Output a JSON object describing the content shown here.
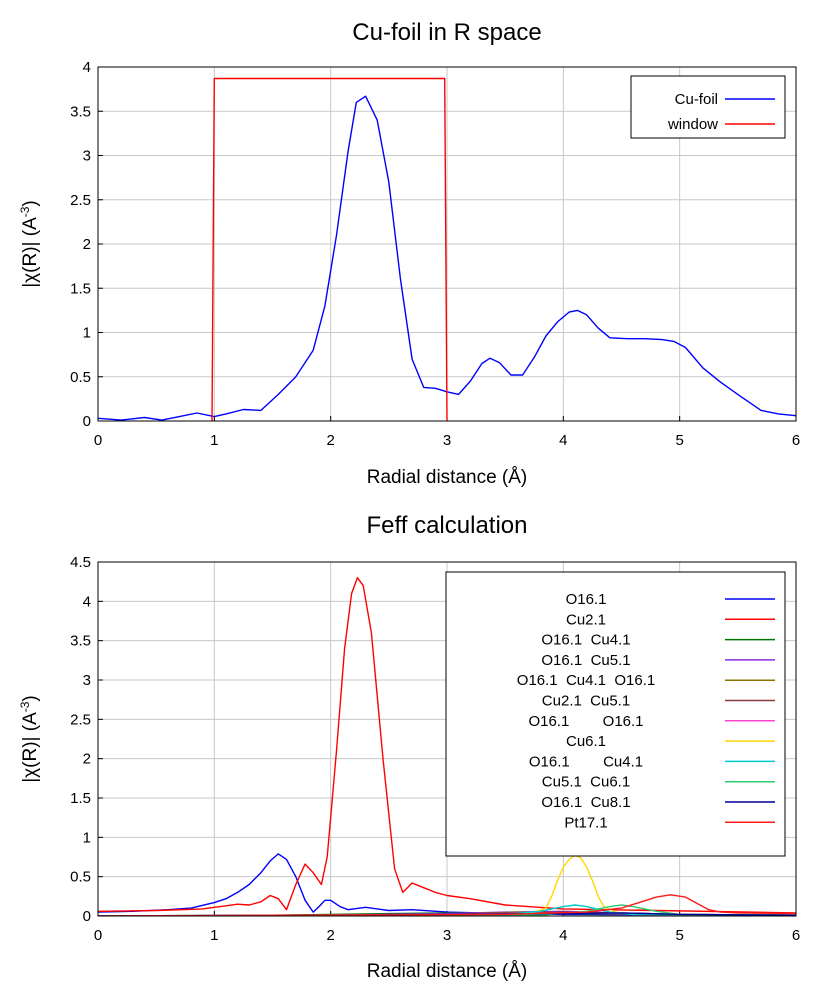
{
  "chart_data": [
    {
      "type": "line",
      "title": "Cu-foil in R space",
      "xlabel": "Radial distance    (Å)",
      "ylabel": "|χ(R)|    (A",
      "ylabel_sup": "-3",
      "ylabel_close": ")",
      "xlim": [
        0,
        6
      ],
      "ylim": [
        0,
        4
      ],
      "xticks": [
        0,
        1,
        2,
        3,
        4,
        5,
        6
      ],
      "yticks": [
        0,
        0.5,
        1,
        1.5,
        2,
        2.5,
        3,
        3.5,
        4
      ],
      "xtick_labels": [
        "0",
        "1",
        "2",
        "3",
        "4",
        "5",
        "6"
      ],
      "ytick_labels": [
        "0",
        "0.5",
        "1",
        "1.5",
        "2",
        "2.5",
        "3",
        "3.5",
        "4"
      ],
      "grid": true,
      "legend_position": "top-right",
      "series": [
        {
          "name": "Cu-foil",
          "color": "#0000ff",
          "x": [
            0,
            0.2,
            0.4,
            0.55,
            0.7,
            0.85,
            1.0,
            1.1,
            1.25,
            1.4,
            1.55,
            1.7,
            1.85,
            1.95,
            2.05,
            2.15,
            2.22,
            2.3,
            2.4,
            2.5,
            2.6,
            2.7,
            2.8,
            2.9,
            3.0,
            3.1,
            3.2,
            3.3,
            3.37,
            3.45,
            3.55,
            3.65,
            3.75,
            3.85,
            3.95,
            4.05,
            4.12,
            4.2,
            4.3,
            4.4,
            4.55,
            4.7,
            4.85,
            4.95,
            5.05,
            5.2,
            5.35,
            5.5,
            5.7,
            5.85,
            6.0
          ],
          "y": [
            0.03,
            0.01,
            0.04,
            0.01,
            0.05,
            0.09,
            0.05,
            0.08,
            0.13,
            0.12,
            0.3,
            0.5,
            0.8,
            1.3,
            2.1,
            3.05,
            3.6,
            3.67,
            3.4,
            2.7,
            1.6,
            0.7,
            0.38,
            0.37,
            0.33,
            0.3,
            0.45,
            0.65,
            0.71,
            0.66,
            0.52,
            0.52,
            0.72,
            0.96,
            1.12,
            1.23,
            1.25,
            1.2,
            1.05,
            0.94,
            0.93,
            0.93,
            0.92,
            0.9,
            0.83,
            0.6,
            0.44,
            0.3,
            0.12,
            0.08,
            0.06
          ]
        },
        {
          "name": "window",
          "color": "#ff0000",
          "x": [
            0.98,
            1.0,
            2.98,
            3.0
          ],
          "y": [
            0,
            3.87,
            3.87,
            0
          ]
        }
      ]
    },
    {
      "type": "line",
      "title": "Feff calculation",
      "xlabel": "Radial distance    (Å)",
      "ylabel": "|χ(R)|    (A",
      "ylabel_sup": "-3",
      "ylabel_close": ")",
      "xlim": [
        0,
        6
      ],
      "ylim": [
        0,
        4.5
      ],
      "xticks": [
        0,
        1,
        2,
        3,
        4,
        5,
        6
      ],
      "yticks": [
        0,
        0.5,
        1,
        1.5,
        2,
        2.5,
        3,
        3.5,
        4,
        4.5
      ],
      "xtick_labels": [
        "0",
        "1",
        "2",
        "3",
        "4",
        "5",
        "6"
      ],
      "ytick_labels": [
        "0",
        "0.5",
        "1",
        "1.5",
        "2",
        "2.5",
        "3",
        "3.5",
        "4",
        "4.5"
      ],
      "grid": true,
      "legend_position": "top-right",
      "series": [
        {
          "name": "O16.1",
          "color": "#0000ff",
          "x": [
            0,
            0.3,
            0.6,
            0.8,
            1.0,
            1.1,
            1.2,
            1.3,
            1.4,
            1.48,
            1.55,
            1.62,
            1.7,
            1.78,
            1.85,
            1.9,
            1.95,
            2.0,
            2.08,
            2.15,
            2.3,
            2.5,
            2.7,
            3.0,
            3.5,
            4.0,
            6.0
          ],
          "y": [
            0.05,
            0.06,
            0.08,
            0.1,
            0.17,
            0.22,
            0.3,
            0.4,
            0.55,
            0.7,
            0.79,
            0.72,
            0.5,
            0.2,
            0.05,
            0.12,
            0.2,
            0.2,
            0.12,
            0.08,
            0.11,
            0.07,
            0.08,
            0.05,
            0.03,
            0.02,
            0.01
          ]
        },
        {
          "name": "Cu2.1",
          "color": "#ff0000",
          "x": [
            0,
            0.5,
            0.9,
            1.0,
            1.1,
            1.2,
            1.3,
            1.4,
            1.48,
            1.55,
            1.62,
            1.7,
            1.78,
            1.85,
            1.92,
            1.97,
            2.05,
            2.12,
            2.18,
            2.23,
            2.28,
            2.35,
            2.45,
            2.55,
            2.62,
            2.7,
            2.8,
            2.9,
            3.0,
            3.2,
            3.5,
            4.0,
            6.0
          ],
          "y": [
            0.06,
            0.07,
            0.09,
            0.11,
            0.13,
            0.15,
            0.14,
            0.18,
            0.26,
            0.22,
            0.08,
            0.4,
            0.66,
            0.55,
            0.4,
            0.75,
            2.1,
            3.4,
            4.1,
            4.3,
            4.2,
            3.6,
            2.0,
            0.6,
            0.3,
            0.42,
            0.36,
            0.3,
            0.26,
            0.22,
            0.14,
            0.09,
            0.04
          ]
        },
        {
          "name": "O16.1  Cu4.1",
          "color": "#007700",
          "x": [
            0,
            1.5,
            2.5,
            3.0,
            4.0,
            5.0,
            6.0
          ],
          "y": [
            0.0,
            0.01,
            0.03,
            0.04,
            0.03,
            0.02,
            0.01
          ]
        },
        {
          "name": "O16.1  Cu5.1",
          "color": "#8a2be2",
          "x": [
            0,
            2.0,
            3.0,
            3.5,
            4.0,
            4.5,
            5.0,
            6.0
          ],
          "y": [
            0.0,
            0.01,
            0.03,
            0.05,
            0.06,
            0.04,
            0.02,
            0.01
          ]
        },
        {
          "name": "O16.1  Cu4.1  O16.1",
          "color": "#8b7500",
          "x": [
            0,
            2.0,
            3.0,
            3.6,
            4.0,
            4.4,
            5.0,
            6.0
          ],
          "y": [
            0.0,
            0.01,
            0.02,
            0.05,
            0.04,
            0.03,
            0.02,
            0.01
          ]
        },
        {
          "name": "Cu2.1  Cu5.1",
          "color": "#8b3a3a",
          "x": [
            0,
            2.0,
            3.0,
            3.5,
            4.0,
            4.5,
            5.0,
            6.0
          ],
          "y": [
            0.0,
            0.01,
            0.02,
            0.04,
            0.05,
            0.04,
            0.02,
            0.01
          ]
        },
        {
          "name": "O16.1        O16.1",
          "color": "#ff44cc",
          "x": [
            0,
            2.0,
            3.0,
            3.5,
            4.0,
            4.5,
            5.0,
            6.0
          ],
          "y": [
            0.0,
            0.01,
            0.02,
            0.03,
            0.04,
            0.03,
            0.02,
            0.01
          ]
        },
        {
          "name": "Cu6.1",
          "color": "#ffd700",
          "x": [
            0,
            3.5,
            3.75,
            3.85,
            3.9,
            3.95,
            4.0,
            4.05,
            4.1,
            4.15,
            4.2,
            4.25,
            4.3,
            4.35,
            4.45,
            4.6,
            6.0
          ],
          "y": [
            0.0,
            0.01,
            0.05,
            0.1,
            0.25,
            0.45,
            0.62,
            0.72,
            0.77,
            0.74,
            0.62,
            0.45,
            0.25,
            0.12,
            0.05,
            0.02,
            0.01
          ]
        },
        {
          "name": "O16.1        Cu4.1",
          "color": "#00cccc",
          "x": [
            0,
            3.5,
            3.8,
            4.0,
            4.1,
            4.2,
            4.4,
            4.6,
            6.0
          ],
          "y": [
            0.0,
            0.02,
            0.06,
            0.12,
            0.14,
            0.12,
            0.05,
            0.02,
            0.01
          ]
        },
        {
          "name": "Cu5.1  Cu6.1",
          "color": "#2ecc71",
          "x": [
            0,
            3.8,
            4.2,
            4.4,
            4.5,
            4.6,
            4.8,
            5.0,
            6.0
          ],
          "y": [
            0.0,
            0.01,
            0.06,
            0.12,
            0.14,
            0.12,
            0.06,
            0.02,
            0.01
          ]
        },
        {
          "name": "O16.1  Cu8.1",
          "color": "#000099",
          "x": [
            0,
            2.0,
            3.0,
            4.0,
            4.5,
            5.0,
            6.0
          ],
          "y": [
            0.0,
            0.01,
            0.02,
            0.03,
            0.04,
            0.02,
            0.01
          ]
        },
        {
          "name": "Pt17.1",
          "color": "#ff1a1a",
          "x": [
            0,
            3.5,
            4.2,
            4.5,
            4.65,
            4.8,
            4.92,
            5.05,
            5.15,
            5.25,
            5.35,
            5.5,
            6.0
          ],
          "y": [
            0.0,
            0.02,
            0.05,
            0.1,
            0.17,
            0.24,
            0.27,
            0.24,
            0.16,
            0.08,
            0.05,
            0.04,
            0.03
          ]
        }
      ]
    }
  ]
}
